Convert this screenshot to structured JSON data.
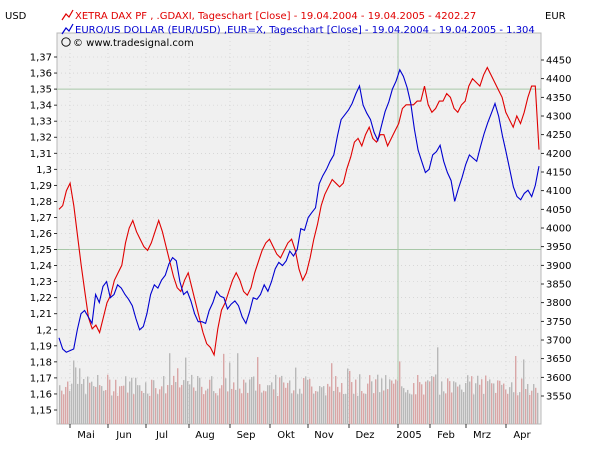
{
  "chart_data": {
    "type": "line",
    "left_axis_unit": "USD",
    "right_axis_unit": "EUR",
    "legend": [
      {
        "text": "XETRA DAX PF , .GDAXI, Tageschart [Close] - 19.04.2004 - 19.04.2005 - 4202.27",
        "color": "#e00000"
      },
      {
        "text": "EURO/US DOLLAR (EUR/USD) ,EUR=X, Tageschart [Close] - 19.04.2004 - 19.04.2005 - 1.304",
        "color": "#0000d0"
      }
    ],
    "source": "© www.tradesignal.com",
    "left_ticks": [
      "1,37",
      "1,36",
      "1,35",
      "1,34",
      "1,33",
      "1,32",
      "1,31",
      "1,3",
      "1,29",
      "1,28",
      "1,27",
      "1,26",
      "1,25",
      "1,24",
      "1,23",
      "1,22",
      "1,21",
      "1,2",
      "1,19",
      "1,18",
      "1,17",
      "1,16",
      "1,15"
    ],
    "left_ylim": [
      1.15,
      1.375
    ],
    "right_ticks": [
      4450,
      4400,
      4350,
      4300,
      4250,
      4200,
      4150,
      4100,
      4050,
      4000,
      3950,
      3900,
      3850,
      3800,
      3750,
      3700,
      3650,
      3600,
      3550
    ],
    "right_ylim": [
      3500,
      4450
    ],
    "x_labels": [
      "Mai",
      "Jun",
      "Jul",
      "Aug",
      "Sep",
      "Okt",
      "Nov",
      "Dez",
      "2005",
      "Feb",
      "Mrz",
      "Apr"
    ],
    "series": [
      {
        "name": "XETRA DAX PF , .GDAXI",
        "axis": "right",
        "color": "#e00000",
        "values": [
          4050,
          4060,
          4100,
          4120,
          4060,
          3980,
          3900,
          3830,
          3760,
          3730,
          3740,
          3720,
          3760,
          3800,
          3820,
          3860,
          3880,
          3900,
          3960,
          4000,
          4020,
          3990,
          3970,
          3950,
          3940,
          3960,
          3990,
          4020,
          3990,
          3950,
          3910,
          3870,
          3840,
          3830,
          3860,
          3880,
          3840,
          3800,
          3760,
          3720,
          3690,
          3680,
          3660,
          3730,
          3780,
          3800,
          3830,
          3860,
          3880,
          3860,
          3830,
          3820,
          3840,
          3880,
          3910,
          3940,
          3960,
          3970,
          3950,
          3930,
          3920,
          3940,
          3960,
          3970,
          3940,
          3890,
          3860,
          3880,
          3920,
          3970,
          4010,
          4060,
          4090,
          4110,
          4130,
          4120,
          4110,
          4120,
          4160,
          4190,
          4230,
          4240,
          4220,
          4250,
          4270,
          4240,
          4230,
          4250,
          4250,
          4220,
          4240,
          4260,
          4280,
          4320,
          4330,
          4330,
          4330,
          4340,
          4340,
          4380,
          4330,
          4310,
          4320,
          4340,
          4340,
          4360,
          4350,
          4320,
          4310,
          4330,
          4340,
          4380,
          4400,
          4390,
          4380,
          4410,
          4430,
          4410,
          4390,
          4370,
          4350,
          4310,
          4290,
          4270,
          4300,
          4280,
          4310,
          4350,
          4380,
          4380,
          4210
        ]
      },
      {
        "name": "EURO/US DOLLAR (EUR/USD) ,EUR=X",
        "axis": "left",
        "color": "#0000d0",
        "values": [
          1.195,
          1.188,
          1.186,
          1.187,
          1.188,
          1.2,
          1.21,
          1.212,
          1.208,
          1.204,
          1.222,
          1.217,
          1.227,
          1.23,
          1.22,
          1.222,
          1.228,
          1.226,
          1.222,
          1.219,
          1.215,
          1.207,
          1.2,
          1.202,
          1.21,
          1.222,
          1.228,
          1.226,
          1.231,
          1.234,
          1.241,
          1.245,
          1.243,
          1.23,
          1.222,
          1.224,
          1.218,
          1.21,
          1.205,
          1.205,
          1.204,
          1.212,
          1.217,
          1.224,
          1.221,
          1.22,
          1.213,
          1.216,
          1.218,
          1.215,
          1.208,
          1.204,
          1.211,
          1.22,
          1.219,
          1.222,
          1.228,
          1.224,
          1.23,
          1.238,
          1.242,
          1.24,
          1.243,
          1.249,
          1.246,
          1.25,
          1.263,
          1.262,
          1.27,
          1.273,
          1.276,
          1.291,
          1.296,
          1.3,
          1.305,
          1.309,
          1.321,
          1.331,
          1.334,
          1.337,
          1.341,
          1.347,
          1.352,
          1.34,
          1.335,
          1.331,
          1.323,
          1.318,
          1.327,
          1.336,
          1.342,
          1.35,
          1.355,
          1.362,
          1.358,
          1.351,
          1.341,
          1.325,
          1.312,
          1.305,
          1.298,
          1.3,
          1.309,
          1.311,
          1.315,
          1.305,
          1.298,
          1.293,
          1.28,
          1.288,
          1.295,
          1.303,
          1.309,
          1.307,
          1.305,
          1.314,
          1.322,
          1.329,
          1.335,
          1.341,
          1.333,
          1.321,
          1.311,
          1.3,
          1.289,
          1.283,
          1.281,
          1.285,
          1.287,
          1.283,
          1.29,
          1.302
        ]
      }
    ],
    "volume_note": "volume bars along bottom"
  }
}
